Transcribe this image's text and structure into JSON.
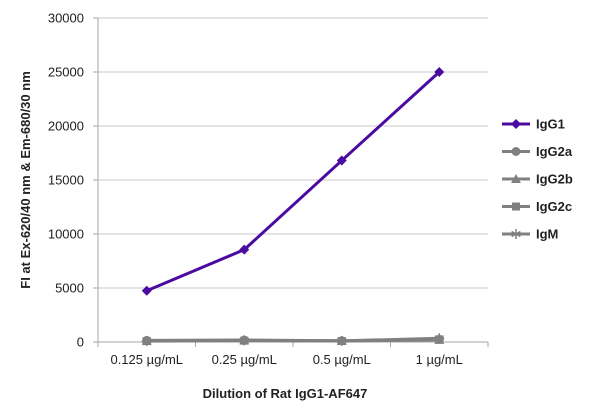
{
  "chart_data": {
    "type": "line",
    "title": "",
    "xlabel": "Dilution of Rat IgG1-AF647",
    "ylabel": "FI at Ex-620/40 nm & Em-680/30 nm",
    "categories": [
      "0.125 µg/mL",
      "0.25 µg/mL",
      "0.5 µg/mL",
      "1 µg/mL"
    ],
    "ylim": [
      0,
      30000
    ],
    "yticks": [
      0,
      5000,
      10000,
      15000,
      20000,
      25000,
      30000
    ],
    "grid": "horizontal",
    "legend": "right",
    "series": [
      {
        "name": "IgG1",
        "color": "#4B0AA0",
        "marker": "diamond",
        "values": [
          4750,
          8550,
          16800,
          25000
        ]
      },
      {
        "name": "IgG2a",
        "color": "#808080",
        "marker": "circle",
        "values": [
          150,
          180,
          120,
          250
        ]
      },
      {
        "name": "IgG2b",
        "color": "#808080",
        "marker": "triangle",
        "values": [
          100,
          150,
          100,
          200
        ]
      },
      {
        "name": "IgG2c",
        "color": "#808080",
        "marker": "square",
        "values": [
          80,
          120,
          90,
          220
        ]
      },
      {
        "name": "IgM",
        "color": "#808080",
        "marker": "star",
        "values": [
          100,
          150,
          100,
          350
        ]
      }
    ]
  }
}
